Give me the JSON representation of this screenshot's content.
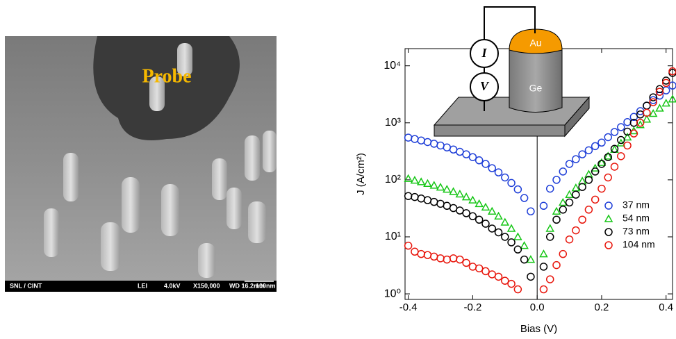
{
  "image": {
    "label": "Probe",
    "footer": [
      "SNL / CINT",
      "LEI",
      "4.0kV",
      "X150,000",
      "WD 16.2mm",
      "100nm"
    ]
  },
  "inset": {
    "meters": [
      "I",
      "V"
    ],
    "contact": "Au",
    "wire": "Ge"
  },
  "chart_data": {
    "type": "scatter",
    "xlabel": "Bias (V)",
    "ylabel": "J (A/cm²)",
    "yscale": "log",
    "xlim": [
      -0.41,
      0.42
    ],
    "ylim": [
      0.8,
      20000
    ],
    "xticks": [
      -0.4,
      -0.2,
      {
        "value": 0,
        "label": "0.0"
      },
      0.2,
      0.4
    ],
    "yticks": [
      {
        "value": 1,
        "label": "10⁰"
      },
      {
        "value": 10,
        "label": "10¹"
      },
      {
        "value": 100,
        "label": "10²"
      },
      {
        "value": 1000,
        "label": "10³"
      },
      {
        "value": 10000,
        "label": "10⁴"
      }
    ],
    "legend": "lower right",
    "series": [
      {
        "name": "37 nm",
        "color": "#1f3fd8",
        "marker": "o",
        "x": [
          -0.4,
          -0.38,
          -0.36,
          -0.34,
          -0.32,
          -0.3,
          -0.28,
          -0.26,
          -0.24,
          -0.22,
          -0.2,
          -0.18,
          -0.16,
          -0.14,
          -0.12,
          -0.1,
          -0.08,
          -0.06,
          -0.04,
          -0.02,
          0.02,
          0.04,
          0.06,
          0.08,
          0.1,
          0.12,
          0.14,
          0.16,
          0.18,
          0.2,
          0.22,
          0.24,
          0.26,
          0.28,
          0.3,
          0.32,
          0.34,
          0.36,
          0.38,
          0.4,
          0.42
        ],
        "values": [
          550,
          520,
          490,
          460,
          430,
          400,
          370,
          340,
          310,
          280,
          250,
          220,
          190,
          160,
          135,
          110,
          88,
          68,
          48,
          28,
          35,
          70,
          100,
          140,
          190,
          230,
          280,
          330,
          390,
          450,
          560,
          690,
          840,
          1030,
          1270,
          1600,
          2000,
          2500,
          3000,
          3700,
          4500
        ]
      },
      {
        "name": "54 nm",
        "color": "#16c616",
        "marker": "^",
        "x": [
          -0.4,
          -0.38,
          -0.36,
          -0.34,
          -0.32,
          -0.3,
          -0.28,
          -0.26,
          -0.24,
          -0.22,
          -0.2,
          -0.18,
          -0.16,
          -0.14,
          -0.12,
          -0.1,
          -0.08,
          -0.06,
          -0.04,
          -0.02,
          0.02,
          0.04,
          0.06,
          0.08,
          0.1,
          0.12,
          0.14,
          0.16,
          0.18,
          0.2,
          0.22,
          0.24,
          0.26,
          0.28,
          0.3,
          0.32,
          0.34,
          0.36,
          0.38,
          0.4,
          0.42
        ],
        "values": [
          105,
          98,
          92,
          86,
          80,
          74,
          68,
          62,
          56,
          50,
          44,
          38,
          33,
          28,
          23,
          18,
          14,
          10,
          7,
          4,
          5,
          14,
          28,
          40,
          55,
          72,
          95,
          125,
          160,
          200,
          260,
          340,
          440,
          560,
          720,
          920,
          1150,
          1450,
          1800,
          2200,
          2600
        ]
      },
      {
        "name": "73 nm",
        "color": "#000000",
        "marker": "o",
        "x": [
          -0.4,
          -0.38,
          -0.36,
          -0.34,
          -0.32,
          -0.3,
          -0.28,
          -0.26,
          -0.24,
          -0.22,
          -0.2,
          -0.18,
          -0.16,
          -0.14,
          -0.12,
          -0.1,
          -0.08,
          -0.06,
          -0.04,
          -0.02,
          0.02,
          0.04,
          0.06,
          0.08,
          0.1,
          0.12,
          0.14,
          0.16,
          0.18,
          0.2,
          0.22,
          0.24,
          0.26,
          0.28,
          0.3,
          0.32,
          0.34,
          0.36,
          0.38,
          0.4,
          0.42
        ],
        "values": [
          52,
          50,
          47,
          44,
          41,
          38,
          35,
          32,
          29,
          26,
          23,
          20,
          17,
          14,
          12,
          10,
          8,
          6,
          4,
          2,
          3,
          10,
          20,
          30,
          40,
          55,
          75,
          100,
          140,
          190,
          250,
          350,
          500,
          700,
          1000,
          1400,
          2000,
          2800,
          3900,
          5500,
          7500
        ]
      },
      {
        "name": "104 nm",
        "color": "#e8160c",
        "marker": "o",
        "x": [
          -0.4,
          -0.38,
          -0.36,
          -0.34,
          -0.32,
          -0.3,
          -0.28,
          -0.26,
          -0.24,
          -0.22,
          -0.2,
          -0.18,
          -0.16,
          -0.14,
          -0.12,
          -0.1,
          -0.08,
          -0.06,
          0.02,
          0.04,
          0.06,
          0.08,
          0.1,
          0.12,
          0.14,
          0.16,
          0.18,
          0.2,
          0.22,
          0.24,
          0.26,
          0.28,
          0.3,
          0.32,
          0.34,
          0.36,
          0.38,
          0.4,
          0.42
        ],
        "values": [
          7,
          5.5,
          5,
          4.8,
          4.5,
          4.2,
          4,
          4.2,
          4,
          3.5,
          3,
          2.8,
          2.5,
          2.2,
          2,
          1.7,
          1.5,
          1.2,
          1.2,
          1.8,
          3.2,
          5,
          9,
          13,
          20,
          30,
          45,
          70,
          110,
          170,
          260,
          400,
          650,
          1000,
          1500,
          2300,
          3500,
          5000,
          8000
        ]
      }
    ]
  }
}
